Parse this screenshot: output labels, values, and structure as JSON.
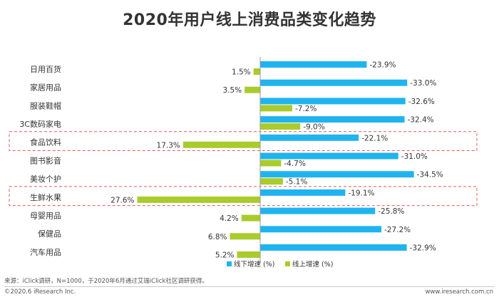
{
  "title": "2020年用户线上消费品类变化趋势",
  "source": "来源：iClick调研，N=1000，于2020年6月通过艾瑞iClick社区调研获得。",
  "copyright": "©2020.6 iResearch Inc.",
  "website": "www.iresearch.com.cn",
  "colors": {
    "offline": "#20b4ee",
    "online": "#a9cc2c",
    "highlight": "#e05a5a",
    "axis": "#999999"
  },
  "chart_data": {
    "type": "bar",
    "orientation": "horizontal",
    "categories": [
      "日用百货",
      "家居用品",
      "服装鞋帽",
      "3C数码家电",
      "食品饮料",
      "图书影音",
      "美妆个护",
      "生鲜水果",
      "母婴用品",
      "保健品",
      "汽车用品"
    ],
    "series": [
      {
        "name": "线下增速 (%)",
        "values": [
          -23.9,
          -33.0,
          -32.6,
          -32.4,
          -22.1,
          -31.0,
          -34.5,
          -19.1,
          -25.8,
          -27.2,
          -32.9
        ],
        "labels": [
          "-23.9%",
          "-33.0%",
          "-32.6%",
          "-32.4%",
          "-22.1%",
          "-31.0%",
          "-34.5%",
          "-19.1%",
          "-25.8%",
          "-27.2%",
          "-32.9%"
        ]
      },
      {
        "name": "线上增速 (%)",
        "values": [
          1.5,
          3.5,
          -7.2,
          -9.0,
          17.3,
          -4.7,
          -5.1,
          27.6,
          4.2,
          6.8,
          5.2
        ],
        "labels": [
          "1.5%",
          "3.5%",
          "-7.2%",
          "-9.0%",
          "17.3%",
          "-4.7%",
          "-5.1%",
          "27.6%",
          "4.2%",
          "6.8%",
          "5.2%"
        ]
      }
    ],
    "highlighted_categories": [
      "食品饮料",
      "生鲜水果"
    ],
    "legend_position": "bottom-center",
    "grid": false
  }
}
